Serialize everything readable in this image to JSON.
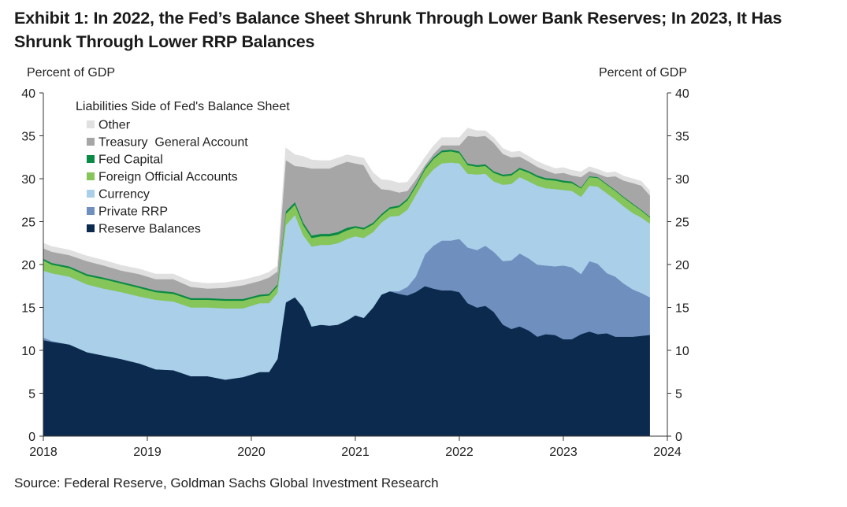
{
  "title": "Exhibit 1: In 2022, the Fed’s Balance Sheet Shrunk Through Lower Bank Reserves; In 2023, It Has Shrunk Through Lower RRP Balances",
  "source": "Source: Federal Reserve, Goldman Sachs Global Investment Research",
  "chart_data": {
    "type": "area",
    "stacked": true,
    "ylabel_left": "Percent of GDP",
    "ylabel_right": "Percent of GDP",
    "ylim": [
      0,
      40
    ],
    "yticks": [
      0,
      5,
      10,
      15,
      20,
      25,
      30,
      35,
      40
    ],
    "xlim": [
      2018,
      2024
    ],
    "xticks": [
      "2018",
      "2019",
      "2020",
      "2021",
      "2022",
      "2023",
      "2024"
    ],
    "legend_title": "Liabilities Side of Fed's Balance Sheet",
    "legend_placement": "top-left",
    "x": [
      2018.0,
      2018.08,
      2018.25,
      2018.42,
      2018.58,
      2018.75,
      2018.92,
      2019.08,
      2019.25,
      2019.42,
      2019.58,
      2019.75,
      2019.92,
      2020.08,
      2020.17,
      2020.25,
      2020.33,
      2020.42,
      2020.5,
      2020.58,
      2020.67,
      2020.75,
      2020.83,
      2020.92,
      2021.0,
      2021.08,
      2021.17,
      2021.25,
      2021.33,
      2021.42,
      2021.5,
      2021.58,
      2021.67,
      2021.75,
      2021.83,
      2021.92,
      2022.0,
      2022.08,
      2022.17,
      2022.25,
      2022.33,
      2022.42,
      2022.5,
      2022.58,
      2022.67,
      2022.75,
      2022.83,
      2022.92,
      2023.0,
      2023.08,
      2023.17,
      2023.25,
      2023.33,
      2023.42,
      2023.5,
      2023.58,
      2023.67,
      2023.75,
      2023.83
    ],
    "series": [
      {
        "name": "Reserve Balances",
        "color": "#0b2a4d",
        "values": [
          11.2,
          11.0,
          10.7,
          9.8,
          9.4,
          9.0,
          8.5,
          7.8,
          7.7,
          7.0,
          7.0,
          6.6,
          6.9,
          7.5,
          7.5,
          9.0,
          15.6,
          16.2,
          15.0,
          12.8,
          13.0,
          12.9,
          13.0,
          13.5,
          14.1,
          13.8,
          15.0,
          16.5,
          16.9,
          16.6,
          16.4,
          16.8,
          17.5,
          17.2,
          17.0,
          17.0,
          16.8,
          15.5,
          15.0,
          15.2,
          14.5,
          13.0,
          12.5,
          12.8,
          12.3,
          11.6,
          11.9,
          11.8,
          11.3,
          11.3,
          11.9,
          12.2,
          11.9,
          12.0,
          11.6,
          11.6,
          11.6,
          11.7,
          11.8
        ]
      },
      {
        "name": "Private RRP",
        "color": "#6f8fbe",
        "values": [
          0.3,
          0.1,
          0.0,
          0.0,
          0.0,
          0.0,
          0.0,
          0.0,
          0.0,
          0.0,
          0.0,
          0.0,
          0.0,
          0.0,
          0.0,
          0.0,
          0.0,
          0.0,
          0.0,
          0.0,
          0.0,
          0.0,
          0.0,
          0.0,
          0.0,
          0.0,
          0.0,
          0.0,
          0.0,
          0.3,
          1.0,
          1.8,
          3.7,
          5.0,
          5.8,
          5.8,
          6.2,
          6.5,
          6.7,
          7.0,
          7.0,
          7.4,
          8.0,
          8.5,
          8.4,
          8.4,
          8.0,
          8.0,
          8.6,
          8.4,
          7.0,
          8.2,
          8.2,
          7.0,
          7.0,
          6.2,
          5.5,
          5.0,
          4.4
        ]
      },
      {
        "name": "Currency",
        "color": "#a9cfe9",
        "values": [
          7.8,
          7.9,
          7.9,
          7.9,
          7.8,
          7.8,
          7.8,
          8.1,
          8.0,
          8.0,
          8.0,
          8.3,
          8.0,
          8.0,
          8.0,
          7.7,
          9.0,
          9.6,
          8.4,
          9.3,
          9.3,
          9.4,
          9.5,
          9.5,
          9.2,
          9.3,
          8.8,
          8.4,
          8.7,
          8.8,
          9.0,
          9.5,
          8.8,
          8.9,
          9.0,
          9.1,
          8.8,
          8.6,
          8.8,
          8.4,
          8.2,
          8.9,
          8.9,
          8.9,
          9.0,
          9.2,
          9.0,
          9.0,
          8.8,
          8.9,
          9.0,
          8.8,
          9.0,
          9.3,
          9.0,
          9.0,
          8.9,
          8.8,
          8.6
        ]
      },
      {
        "name": "Foreign Official Accounts",
        "color": "#86c55a",
        "values": [
          1.2,
          1.0,
          1.0,
          1.0,
          1.1,
          1.0,
          1.0,
          0.9,
          0.9,
          0.9,
          0.9,
          0.9,
          0.9,
          0.8,
          0.9,
          0.8,
          1.3,
          1.2,
          1.2,
          1.0,
          1.0,
          1.0,
          1.0,
          1.0,
          1.0,
          1.0,
          0.9,
          0.8,
          0.9,
          1.0,
          1.1,
          1.0,
          1.1,
          1.2,
          1.3,
          1.3,
          1.2,
          1.0,
          0.9,
          0.9,
          1.0,
          1.0,
          1.0,
          0.9,
          1.0,
          1.0,
          1.0,
          1.0,
          0.9,
          0.9,
          1.0,
          1.0,
          1.0,
          1.0,
          1.0,
          1.0,
          1.0,
          0.8,
          0.7
        ]
      },
      {
        "name": "Fed Capital",
        "color": "#0a8a45",
        "values": [
          0.2,
          0.2,
          0.2,
          0.2,
          0.2,
          0.2,
          0.2,
          0.2,
          0.2,
          0.2,
          0.2,
          0.2,
          0.2,
          0.2,
          0.2,
          0.2,
          0.3,
          0.3,
          0.3,
          0.3,
          0.3,
          0.3,
          0.3,
          0.3,
          0.2,
          0.2,
          0.2,
          0.2,
          0.2,
          0.2,
          0.2,
          0.2,
          0.2,
          0.2,
          0.2,
          0.2,
          0.2,
          0.2,
          0.2,
          0.2,
          0.2,
          0.2,
          0.2,
          0.2,
          0.2,
          0.2,
          0.2,
          0.2,
          0.2,
          0.2,
          0.1,
          0.1,
          0.1,
          0.1,
          0.1,
          0.1,
          0.1,
          0.1,
          0.1
        ]
      },
      {
        "name": "Treasury General Account",
        "color": "#a6a6a6",
        "values": [
          1.2,
          1.3,
          1.3,
          1.5,
          1.4,
          1.3,
          1.4,
          1.3,
          1.5,
          1.3,
          1.1,
          1.3,
          1.6,
          1.6,
          1.9,
          1.5,
          6.0,
          4.2,
          6.5,
          7.8,
          7.6,
          7.6,
          7.8,
          7.7,
          7.3,
          7.3,
          4.8,
          2.9,
          2.0,
          1.5,
          0.9,
          0.6,
          0.3,
          0.4,
          0.6,
          0.5,
          0.7,
          3.2,
          3.3,
          3.3,
          3.3,
          2.4,
          1.9,
          1.3,
          1.1,
          1.0,
          0.9,
          0.6,
          0.9,
          0.7,
          1.2,
          0.6,
          0.4,
          0.8,
          1.6,
          1.9,
          2.4,
          2.8,
          2.5
        ]
      },
      {
        "name": "Other",
        "color": "#e0e0e0",
        "values": [
          0.6,
          0.6,
          0.6,
          0.6,
          0.6,
          0.6,
          0.6,
          0.6,
          0.6,
          0.6,
          0.6,
          0.6,
          0.6,
          0.6,
          0.6,
          0.6,
          1.4,
          1.3,
          1.2,
          1.0,
          0.9,
          0.9,
          0.8,
          0.8,
          0.8,
          0.8,
          1.0,
          1.1,
          1.1,
          1.1,
          1.0,
          1.0,
          0.9,
          0.9,
          0.9,
          0.9,
          0.9,
          0.9,
          0.7,
          0.6,
          0.6,
          0.6,
          0.6,
          0.6,
          0.6,
          0.6,
          0.6,
          0.6,
          0.6,
          0.6,
          0.6,
          0.5,
          0.5,
          0.5,
          0.5,
          0.5,
          0.5,
          0.5,
          0.5
        ]
      }
    ],
    "legend_order": [
      "Other",
      "Treasury  General Account",
      "Fed Capital",
      "Foreign Official Accounts",
      "Currency",
      "Private RRP",
      "Reserve Balances"
    ]
  }
}
